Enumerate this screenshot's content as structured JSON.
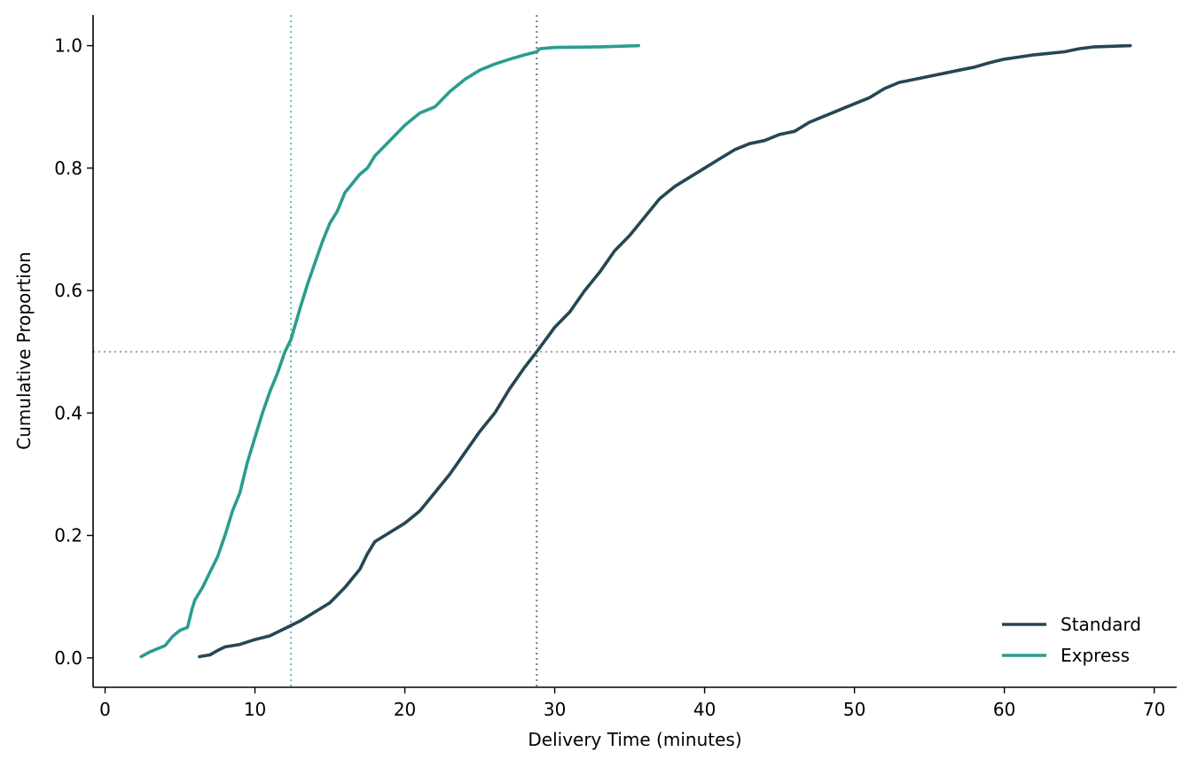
{
  "chart_data": {
    "type": "line",
    "xlabel": "Delivery Time (minutes)",
    "ylabel": "Cumulative Proportion",
    "xlim": [
      -0.8,
      71.5
    ],
    "ylim": [
      -0.048,
      1.05
    ],
    "xticks": [
      0,
      10,
      20,
      30,
      40,
      50,
      60,
      70
    ],
    "yticks": [
      0.0,
      0.2,
      0.4,
      0.6,
      0.8,
      1.0
    ],
    "ytick_labels": [
      "0.0",
      "0.2",
      "0.4",
      "0.6",
      "0.8",
      "1.0"
    ],
    "grid": false,
    "legend_position": "bottom-right",
    "series": [
      {
        "name": "Standard",
        "color": "#264653",
        "x": [
          6.3,
          7.0,
          7.5,
          8.0,
          8.5,
          9.0,
          10.0,
          11.0,
          12.0,
          13.0,
          14.0,
          15.0,
          16.0,
          17.0,
          17.5,
          18.0,
          19.0,
          20.0,
          21.0,
          22.0,
          23.0,
          24.0,
          25.0,
          26.0,
          27.0,
          28.0,
          28.8,
          30.0,
          31.0,
          32.0,
          33.0,
          34.0,
          35.0,
          36.0,
          37.0,
          38.0,
          39.0,
          40.0,
          41.0,
          42.0,
          43.0,
          44.0,
          45.0,
          46.0,
          47.0,
          48.0,
          49.0,
          50.0,
          51.0,
          52.0,
          53.0,
          54.0,
          55.0,
          56.0,
          57.0,
          58.0,
          59.0,
          60.0,
          62.0,
          64.0,
          65.0,
          66.0,
          68.4
        ],
        "y": [
          0.002,
          0.005,
          0.012,
          0.018,
          0.02,
          0.022,
          0.03,
          0.036,
          0.048,
          0.06,
          0.075,
          0.09,
          0.115,
          0.145,
          0.17,
          0.19,
          0.205,
          0.22,
          0.24,
          0.27,
          0.3,
          0.335,
          0.37,
          0.4,
          0.44,
          0.475,
          0.5,
          0.54,
          0.565,
          0.6,
          0.63,
          0.665,
          0.69,
          0.72,
          0.75,
          0.77,
          0.785,
          0.8,
          0.815,
          0.83,
          0.84,
          0.845,
          0.855,
          0.86,
          0.875,
          0.885,
          0.895,
          0.905,
          0.915,
          0.93,
          0.94,
          0.945,
          0.95,
          0.955,
          0.96,
          0.965,
          0.972,
          0.978,
          0.985,
          0.99,
          0.995,
          0.998,
          1.0
        ]
      },
      {
        "name": "Express",
        "color": "#2a9d8f",
        "x": [
          2.4,
          3.0,
          4.0,
          4.5,
          5.0,
          5.5,
          5.8,
          6.0,
          6.5,
          7.0,
          7.5,
          8.0,
          8.5,
          9.0,
          9.5,
          10.0,
          10.5,
          11.0,
          11.5,
          12.0,
          12.4,
          13.0,
          13.5,
          14.0,
          14.5,
          15.0,
          15.5,
          16.0,
          16.5,
          17.0,
          17.5,
          18.0,
          19.0,
          20.0,
          21.0,
          22.0,
          23.0,
          24.0,
          25.0,
          26.0,
          27.0,
          28.0,
          28.8,
          29.0,
          30.0,
          33.0,
          35.6
        ],
        "y": [
          0.002,
          0.01,
          0.02,
          0.035,
          0.045,
          0.05,
          0.08,
          0.095,
          0.115,
          0.14,
          0.165,
          0.2,
          0.24,
          0.27,
          0.32,
          0.36,
          0.4,
          0.435,
          0.465,
          0.5,
          0.52,
          0.57,
          0.61,
          0.645,
          0.68,
          0.71,
          0.73,
          0.76,
          0.775,
          0.79,
          0.8,
          0.82,
          0.845,
          0.87,
          0.89,
          0.9,
          0.925,
          0.945,
          0.96,
          0.97,
          0.978,
          0.985,
          0.99,
          0.995,
          0.997,
          0.998,
          1.0
        ]
      }
    ],
    "reference_lines": [
      {
        "orientation": "horizontal",
        "value": 0.5,
        "color": "#999999"
      },
      {
        "orientation": "vertical",
        "value": 28.8,
        "color": "#264653"
      },
      {
        "orientation": "vertical",
        "value": 12.4,
        "color": "#2a9d8f"
      }
    ]
  }
}
